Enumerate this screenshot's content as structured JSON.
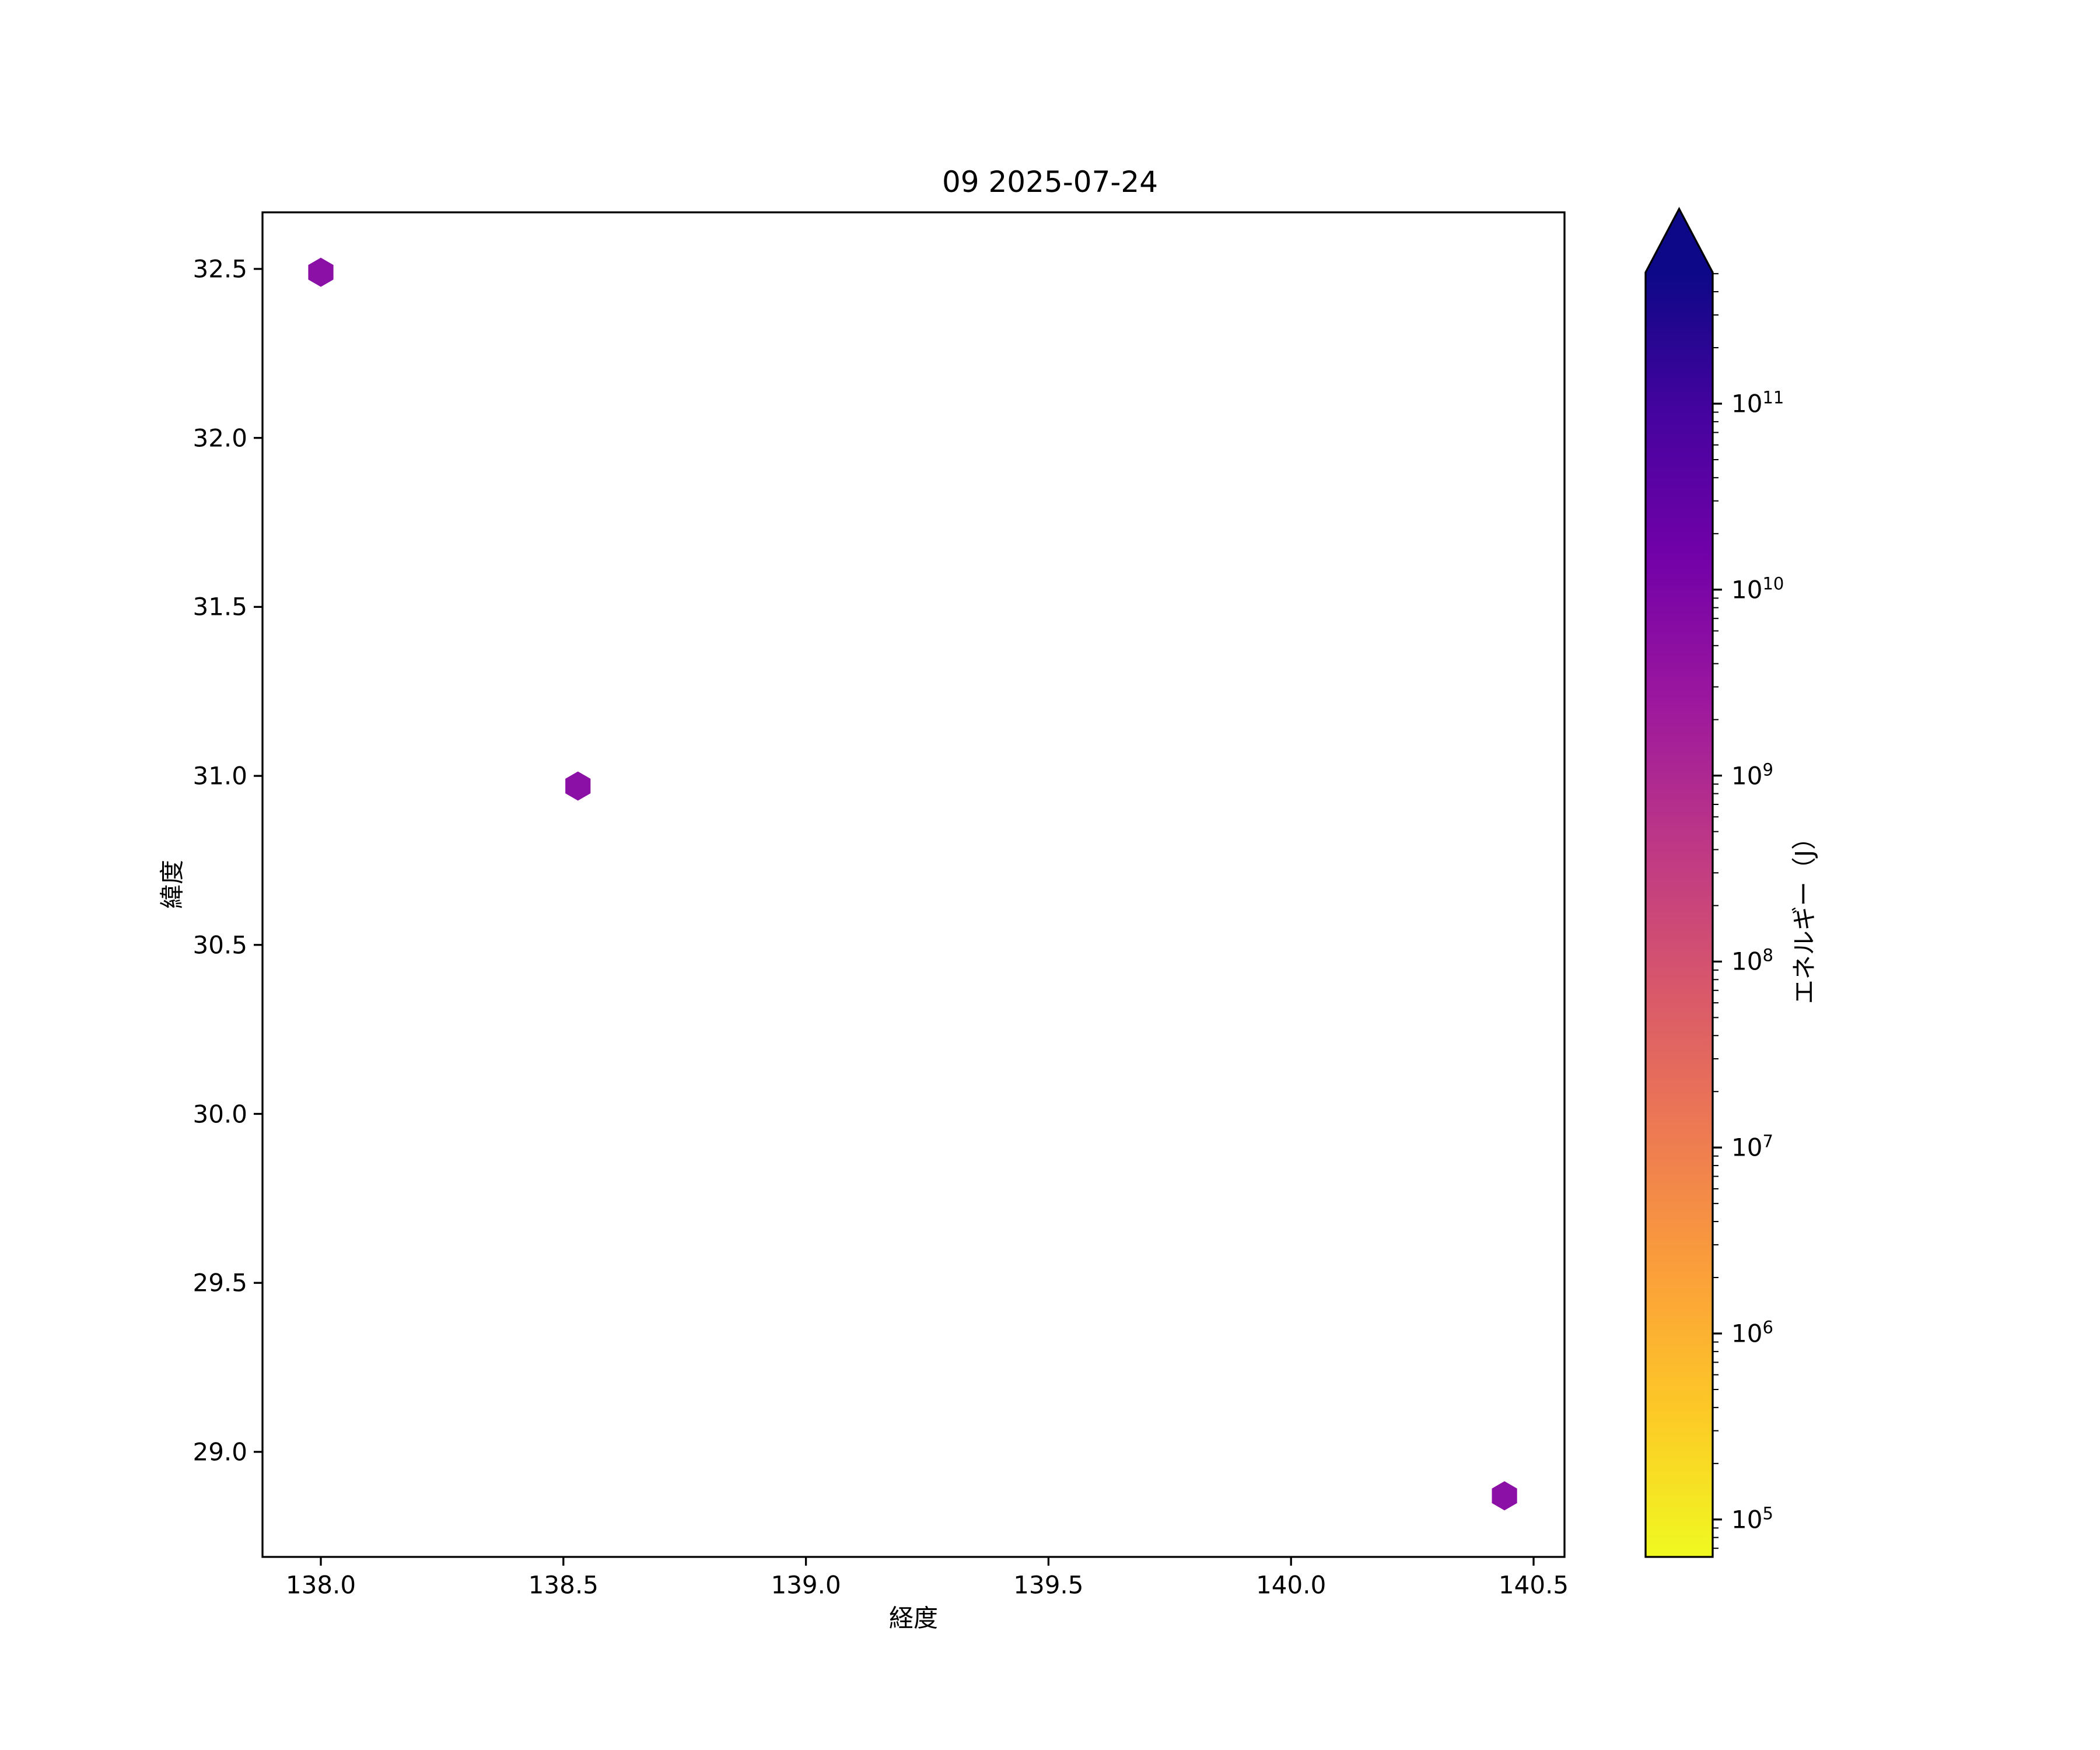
{
  "figure": {
    "background": "#ffffff",
    "text_color": "#000000"
  },
  "chart_data": {
    "type": "scatter",
    "title": "09 2025-07-24",
    "xlabel": "経度",
    "ylabel": "緯度",
    "grid": false,
    "xlim": [
      137.88,
      140.56
    ],
    "ylim": [
      28.69,
      32.67
    ],
    "x_ticks": [
      "138.0",
      "138.5",
      "139.0",
      "139.5",
      "140.0",
      "140.5"
    ],
    "y_ticks": [
      "32.5",
      "32.0",
      "31.5",
      "31.0",
      "30.5",
      "30.0",
      "29.5",
      "29.0"
    ],
    "points": [
      {
        "lon": 138.0,
        "lat": 32.49
      },
      {
        "lon": 138.53,
        "lat": 30.97
      },
      {
        "lon": 140.44,
        "lat": 28.87
      }
    ],
    "marker": {
      "shape": "hexagon",
      "color": "#8a10a6"
    },
    "colorbar": {
      "label": "エネルギー（J）",
      "scale": "log",
      "extend": "max",
      "tick_exponents": [
        11,
        10,
        9,
        8,
        7,
        6,
        5
      ],
      "tick_base": "10",
      "colormap": "plasma_r",
      "gradient_top_to_bottom": [
        "#0d0887",
        "#46039f",
        "#7201a8",
        "#9c179e",
        "#bd3786",
        "#d8576b",
        "#ed7953",
        "#fb9f3a",
        "#fdca26",
        "#f0f921"
      ],
      "arrow_color": "#0d0887"
    }
  }
}
